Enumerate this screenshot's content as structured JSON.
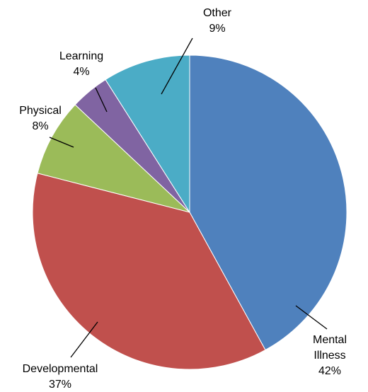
{
  "chart_data": {
    "type": "pie",
    "categories": [
      "Mental Illness",
      "Developmental",
      "Physical",
      "Learning",
      "Other"
    ],
    "values": [
      42,
      37,
      8,
      4,
      9
    ],
    "value_labels": [
      "42%",
      "37%",
      "8%",
      "4%",
      "9%"
    ],
    "colors": [
      "#4f81bd",
      "#c0504d",
      "#9bbb59",
      "#8064a2",
      "#4bacc6"
    ]
  }
}
